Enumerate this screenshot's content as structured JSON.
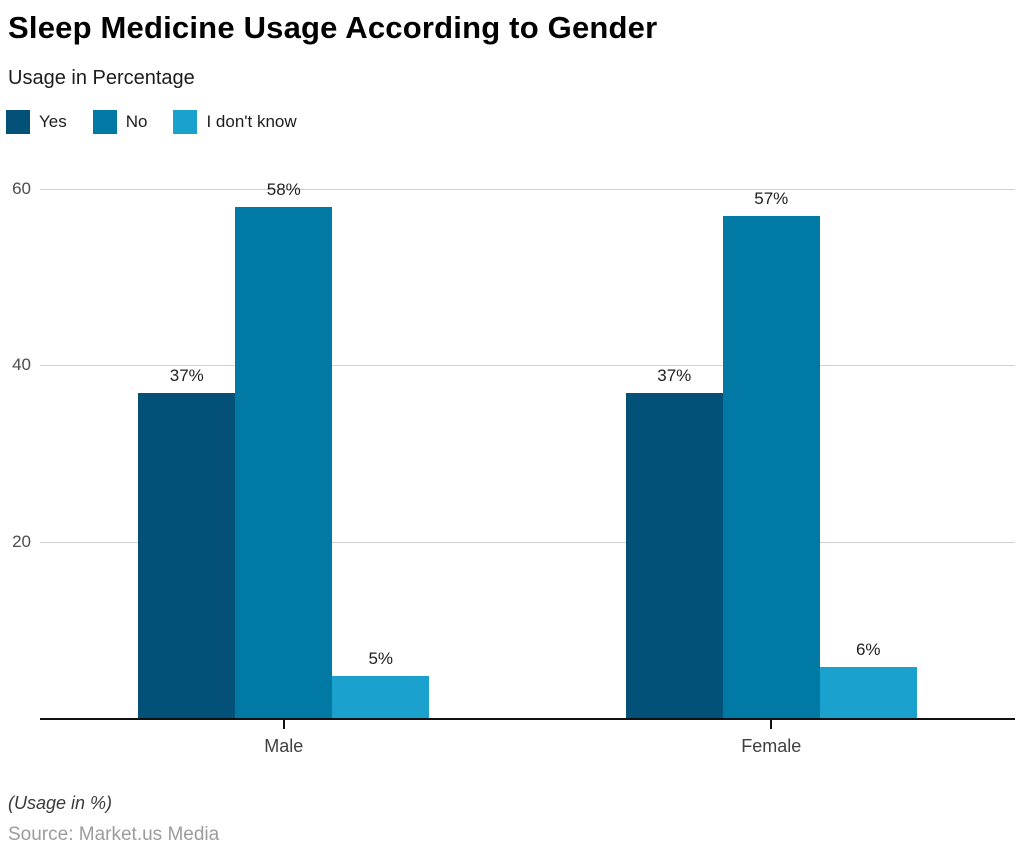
{
  "header": {
    "title": "Sleep Medicine Usage According to Gender",
    "subtitle": "Usage in Percentage"
  },
  "chart_data": {
    "type": "bar",
    "categories": [
      "Male",
      "Female"
    ],
    "series": [
      {
        "name": "Yes",
        "color": "#035078",
        "values": [
          37,
          37
        ]
      },
      {
        "name": "No",
        "color": "#007aa4",
        "values": [
          58,
          57
        ]
      },
      {
        "name": "I don't know",
        "color": "#1aa1ce",
        "values": [
          5,
          6
        ]
      }
    ],
    "value_suffix": "%",
    "data_labels": [
      [
        "37%",
        "58%",
        "5%"
      ],
      [
        "37%",
        "57%",
        "6%"
      ]
    ],
    "y_ticks": [
      20,
      40,
      60
    ],
    "ylim": [
      0,
      64
    ],
    "grid": true,
    "legend_position": "top-left",
    "xlabel": "",
    "ylabel": ""
  },
  "footer": {
    "note": "(Usage in %)",
    "source": "Source: Market.us Media"
  }
}
